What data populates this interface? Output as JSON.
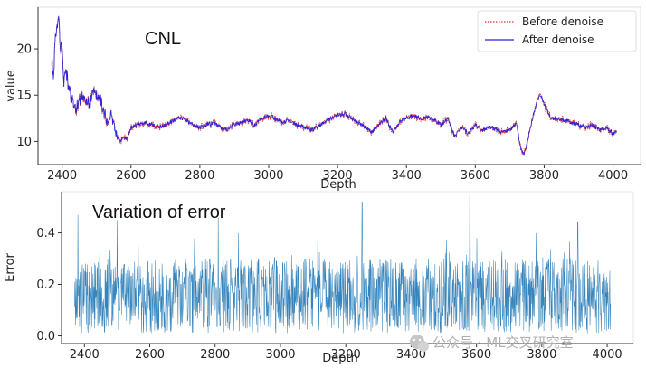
{
  "chart_data": [
    {
      "type": "line",
      "title": "CNL",
      "xlabel": "Depth",
      "ylabel": "value",
      "xlim": [
        2330,
        4080
      ],
      "ylim": [
        7.5,
        24.5
      ],
      "xticks": [
        2400,
        2600,
        2800,
        3000,
        3200,
        3400,
        3600,
        3800,
        4000
      ],
      "yticks": [
        10,
        15,
        20
      ],
      "legend_position": "top-right",
      "grid": false,
      "series": [
        {
          "name": "Before denoise",
          "color": "#e8312f",
          "style": "dotted",
          "x": [
            2370,
            2375,
            2380,
            2385,
            2390,
            2395,
            2400,
            2405,
            2410,
            2420,
            2430,
            2440,
            2450,
            2460,
            2470,
            2480,
            2490,
            2500,
            2510,
            2520,
            2530,
            2540,
            2550,
            2560,
            2570,
            2580,
            2590,
            2600,
            2620,
            2640,
            2660,
            2680,
            2700,
            2720,
            2740,
            2760,
            2780,
            2800,
            2820,
            2840,
            2860,
            2880,
            2900,
            2920,
            2940,
            2960,
            2980,
            3000,
            3020,
            3040,
            3060,
            3080,
            3100,
            3120,
            3140,
            3160,
            3180,
            3200,
            3220,
            3240,
            3260,
            3280,
            3300,
            3320,
            3340,
            3360,
            3380,
            3400,
            3420,
            3440,
            3460,
            3480,
            3500,
            3520,
            3540,
            3560,
            3580,
            3600,
            3620,
            3640,
            3660,
            3680,
            3700,
            3720,
            3730,
            3740,
            3750,
            3760,
            3770,
            3780,
            3790,
            3800,
            3820,
            3840,
            3860,
            3880,
            3900,
            3920,
            3940,
            3960,
            3980,
            4000,
            4010
          ],
          "values": [
            19,
            16.5,
            21.5,
            22.5,
            23.5,
            20,
            21,
            16,
            18,
            15.5,
            14.5,
            13.5,
            14.5,
            15,
            14.5,
            14,
            15.5,
            15,
            14.5,
            13.5,
            12,
            13,
            11.5,
            10.5,
            10,
            10.5,
            10.2,
            11.5,
            11.8,
            12,
            11.8,
            11.5,
            11.8,
            12.2,
            12.5,
            12.3,
            11.8,
            11.5,
            11.8,
            12,
            11.5,
            11.3,
            11.8,
            12,
            12.3,
            11.8,
            12.5,
            12.8,
            12.4,
            12,
            12.3,
            11.8,
            11.6,
            11.2,
            11.5,
            12,
            12.5,
            12.8,
            13,
            12.5,
            12,
            11.5,
            11,
            11.8,
            12.5,
            11,
            12,
            12.5,
            12.8,
            12.5,
            12.6,
            12.3,
            11.8,
            12.5,
            10.5,
            11.5,
            10.8,
            11.8,
            11.2,
            11.6,
            11.3,
            11,
            11.2,
            12,
            9.5,
            8.5,
            9.8,
            11.5,
            13,
            14.5,
            15,
            14,
            12.5,
            12.5,
            12.3,
            12,
            11.8,
            11.5,
            11.8,
            11.2,
            11.5,
            10.8,
            11
          ],
          "note": "trace extends beyond the recorded points, becoming higher-frequency (noisier) than the after-denoise series"
        },
        {
          "name": "After denoise",
          "color": "#2b22d8",
          "style": "solid",
          "x": [
            2370,
            2375,
            2380,
            2385,
            2390,
            2395,
            2400,
            2405,
            2410,
            2420,
            2430,
            2440,
            2450,
            2460,
            2470,
            2480,
            2490,
            2500,
            2510,
            2520,
            2530,
            2540,
            2550,
            2560,
            2570,
            2580,
            2590,
            2600,
            2620,
            2640,
            2660,
            2680,
            2700,
            2720,
            2740,
            2760,
            2780,
            2800,
            2820,
            2840,
            2860,
            2880,
            2900,
            2920,
            2940,
            2960,
            2980,
            3000,
            3020,
            3040,
            3060,
            3080,
            3100,
            3120,
            3140,
            3160,
            3180,
            3200,
            3220,
            3240,
            3260,
            3280,
            3300,
            3320,
            3340,
            3360,
            3380,
            3400,
            3420,
            3440,
            3460,
            3480,
            3500,
            3520,
            3540,
            3560,
            3580,
            3600,
            3620,
            3640,
            3660,
            3680,
            3700,
            3720,
            3730,
            3740,
            3750,
            3760,
            3770,
            3780,
            3790,
            3800,
            3820,
            3840,
            3860,
            3880,
            3900,
            3920,
            3940,
            3960,
            3980,
            4000,
            4010
          ],
          "values": [
            19,
            16.5,
            21.5,
            22.5,
            23.5,
            20,
            21,
            16,
            18,
            15.5,
            14.5,
            13.5,
            14.5,
            15,
            14.5,
            14,
            15.5,
            15,
            14.5,
            13.5,
            12,
            13,
            11.5,
            10.5,
            10,
            10.5,
            10.2,
            11.5,
            11.8,
            12,
            11.8,
            11.5,
            11.8,
            12.2,
            12.5,
            12.3,
            11.8,
            11.5,
            11.8,
            12,
            11.5,
            11.3,
            11.8,
            12,
            12.3,
            11.8,
            12.5,
            12.8,
            12.4,
            12,
            12.3,
            11.8,
            11.6,
            11.2,
            11.5,
            12,
            12.5,
            12.8,
            13,
            12.5,
            12,
            11.5,
            11,
            11.8,
            12.5,
            11,
            12,
            12.5,
            12.8,
            12.5,
            12.6,
            12.3,
            11.8,
            12.5,
            10.5,
            11.5,
            10.8,
            11.8,
            11.2,
            11.6,
            11.3,
            11,
            11.2,
            12,
            9.5,
            8.5,
            9.8,
            11.5,
            13,
            14.5,
            15,
            14,
            12.5,
            12.5,
            12.3,
            12,
            11.8,
            11.5,
            11.8,
            11.2,
            11.5,
            10.8,
            11
          ]
        }
      ]
    },
    {
      "type": "line",
      "title": "Variation of error",
      "xlabel": "Depth",
      "ylabel": "Error",
      "xlim": [
        2330,
        4080
      ],
      "ylim": [
        -0.03,
        0.56
      ],
      "xticks": [
        2400,
        2600,
        2800,
        3000,
        3200,
        3400,
        3600,
        3800,
        4000
      ],
      "yticks": [
        0.0,
        0.2,
        0.4
      ],
      "yticklabels": [
        "0.0",
        "0.2",
        "0.4"
      ],
      "grid": false,
      "series": [
        {
          "color": "#1f77b4",
          "x_range": [
            2370,
            4010
          ],
          "value_range": [
            0.0,
            0.55
          ],
          "typical_range": [
            0.05,
            0.3
          ],
          "peaks": [
            {
              "x": 2380,
              "value": 0.47
            },
            {
              "x": 2500,
              "value": 0.45
            },
            {
              "x": 2810,
              "value": 0.46
            },
            {
              "x": 3250,
              "value": 0.52
            },
            {
              "x": 3580,
              "value": 0.55
            },
            {
              "x": 3910,
              "value": 0.44
            }
          ]
        }
      ]
    }
  ],
  "watermark": {
    "text": "公众号 · ML交叉研究室",
    "icon": "wechat-icon"
  }
}
